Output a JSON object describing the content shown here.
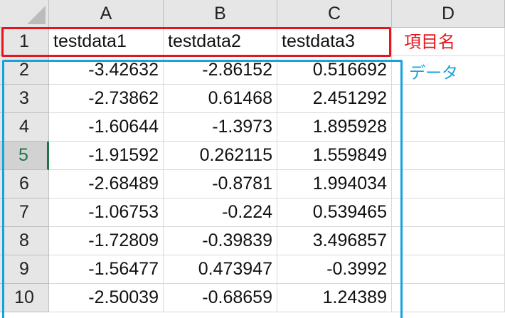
{
  "columns": [
    "A",
    "B",
    "C",
    "D"
  ],
  "rows": [
    "1",
    "2",
    "3",
    "4",
    "5",
    "6",
    "7",
    "8",
    "9",
    "10"
  ],
  "active_row": "5",
  "header_row": [
    "testdata1",
    "testdata2",
    "testdata3"
  ],
  "data_rows": [
    [
      "-3.42632",
      "-2.86152",
      "0.516692"
    ],
    [
      "-2.73862",
      "0.61468",
      "2.451292"
    ],
    [
      "-1.60644",
      "-1.3973",
      "1.895928"
    ],
    [
      "-1.91592",
      "0.262115",
      "1.559849"
    ],
    [
      "-2.68489",
      "-0.8781",
      "1.994034"
    ],
    [
      "-1.06753",
      "-0.224",
      "0.539465"
    ],
    [
      "-1.72809",
      "-0.39839",
      "3.496857"
    ],
    [
      "-1.56477",
      "0.473947",
      "-0.3992"
    ],
    [
      "-2.50039",
      "-0.68659",
      "1.24389"
    ]
  ],
  "annotations": {
    "header_label": "項目名",
    "data_label": "データ",
    "header_color": "#e8141c",
    "data_color": "#16a3dc"
  },
  "colors": {
    "header_bg": "#e6e6e6",
    "active_row_accent": "#217346",
    "gridline": "#d9d9d9"
  }
}
